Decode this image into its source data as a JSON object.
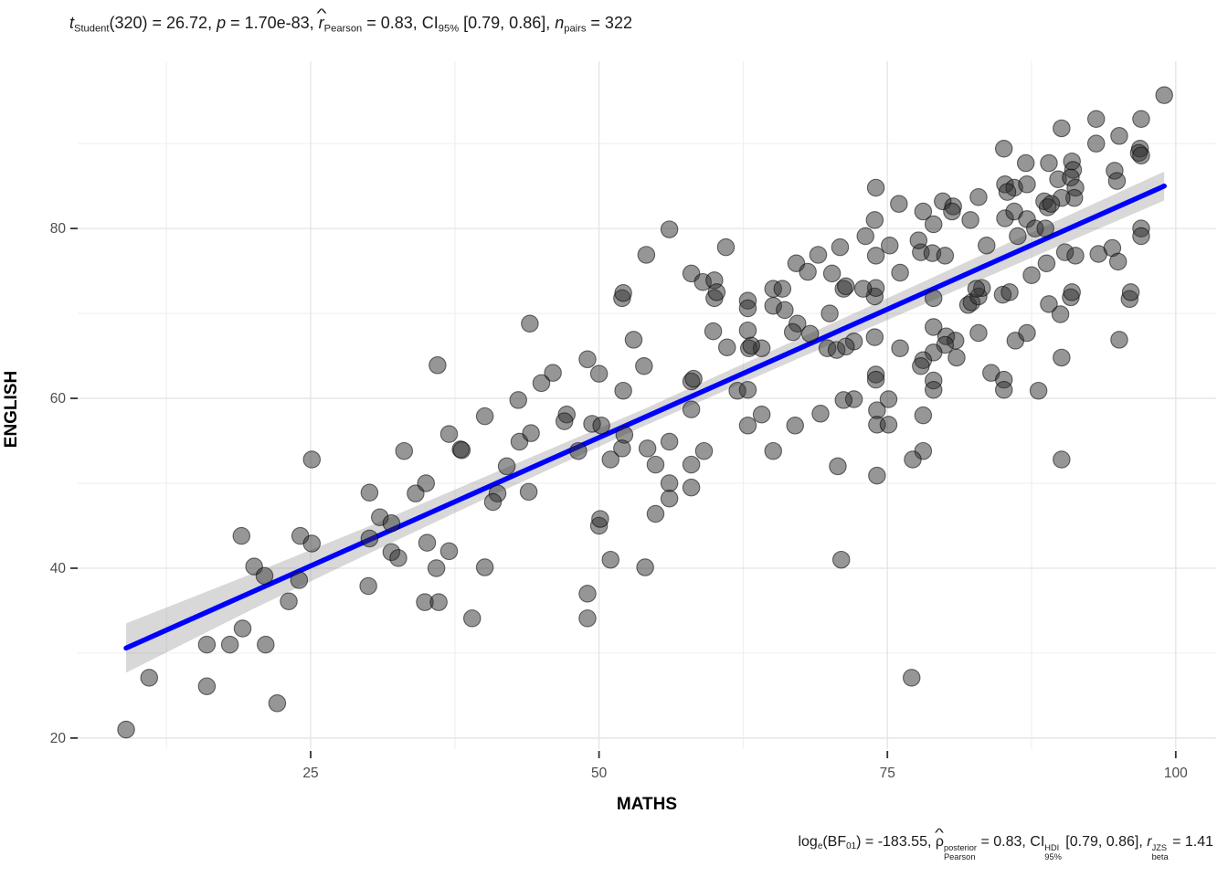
{
  "plot_colors": {
    "background": "#ffffff",
    "grid_major": "#e4e4e4",
    "grid_minor": "#f0f0f0",
    "tick_mark": "#333333",
    "tick_label": "#4d4d4d",
    "axis_title": "#000000",
    "point_fill": "rgba(45,45,45,0.50)",
    "point_stroke": "rgba(0,0,0,0.55)",
    "regression_line": "#0000FF",
    "ci_band": "rgba(127,127,127,0.30)",
    "stats_text": "#1a1a1a"
  },
  "subtitle": {
    "segments": [
      {
        "t": "t",
        "s": "i"
      },
      {
        "t": "Student",
        "s": "sub"
      },
      {
        "t": "(320) = 26.72, ",
        "s": ""
      },
      {
        "t": "p",
        "s": "i"
      },
      {
        "t": " = 1.70e-83, ",
        "s": ""
      },
      {
        "t": "r",
        "s": "i",
        "hat": "^"
      },
      {
        "t": "Pearson",
        "s": "sub"
      },
      {
        "t": " = 0.83, CI",
        "s": ""
      },
      {
        "t": "95%",
        "s": "sub"
      },
      {
        "t": " [0.79, 0.86], ",
        "s": ""
      },
      {
        "t": "n",
        "s": "i"
      },
      {
        "t": "pairs",
        "s": "sub"
      },
      {
        "t": " = 322",
        "s": ""
      }
    ]
  },
  "caption": {
    "segments": [
      {
        "t": "log",
        "s": ""
      },
      {
        "t": "e",
        "s": "sub"
      },
      {
        "t": "(BF",
        "s": ""
      },
      {
        "t": "01",
        "s": "sub"
      },
      {
        "t": ") = -183.55, ",
        "s": ""
      },
      {
        "t": "ρ",
        "s": "",
        "hat": "^"
      },
      {
        "top": "posterior",
        "bot": "Pearson",
        "s": "stack"
      },
      {
        "t": " = 0.83, CI",
        "s": ""
      },
      {
        "top": "HDI",
        "bot": "95%",
        "s": "stack"
      },
      {
        "t": " [0.79, 0.86], ",
        "s": ""
      },
      {
        "t": "r",
        "s": "i"
      },
      {
        "top": "JZS",
        "bot": "beta",
        "s": "stack"
      },
      {
        "t": " = 1.41",
        "s": ""
      }
    ]
  },
  "chart_data": {
    "type": "scatter",
    "xlabel": "MATHS",
    "ylabel": "ENGLISH",
    "xlim": [
      4.8,
      103.5
    ],
    "ylim": [
      18.7,
      99.7
    ],
    "x_ticks": [
      25,
      50,
      75,
      100
    ],
    "x_minor_ticks": [
      12.5,
      37.5,
      62.5,
      87.5
    ],
    "y_ticks": [
      20,
      40,
      60,
      80
    ],
    "y_minor_ticks": [
      30,
      50,
      70,
      90
    ],
    "grid": true,
    "legend": "none",
    "n_pairs": 322,
    "regression_line": {
      "x1": 9,
      "y1": 30.6,
      "x2": 99,
      "y2": 85.0
    },
    "ci_band": {
      "x": [
        9,
        20,
        30,
        40,
        54,
        70,
        85,
        99
      ],
      "upper": [
        33.5,
        39.4,
        44.9,
        50.7,
        58.8,
        68.7,
        78.0,
        86.7
      ],
      "lower": [
        27.7,
        35.2,
        41.7,
        48.1,
        56.8,
        66.3,
        75.1,
        83.3
      ]
    },
    "points": [
      [
        9,
        21
      ],
      [
        11,
        27.1
      ],
      [
        16,
        26.1
      ],
      [
        22.1,
        24.1
      ],
      [
        16,
        31
      ],
      [
        18,
        31
      ],
      [
        21.1,
        31
      ],
      [
        19.1,
        32.9
      ],
      [
        23.1,
        36.1
      ],
      [
        30,
        37.9
      ],
      [
        34.9,
        36
      ],
      [
        36.1,
        36
      ],
      [
        20.1,
        40.2
      ],
      [
        21,
        39.1
      ],
      [
        24,
        38.6
      ],
      [
        19,
        43.8
      ],
      [
        24.1,
        43.8
      ],
      [
        25.1,
        42.9
      ],
      [
        30.1,
        43.5
      ],
      [
        32,
        41.9
      ],
      [
        32.6,
        41.2
      ],
      [
        35.1,
        43
      ],
      [
        37,
        42
      ],
      [
        35.9,
        40
      ],
      [
        39,
        34.1
      ],
      [
        49,
        34.1
      ],
      [
        49,
        37
      ],
      [
        40.1,
        40.1
      ],
      [
        51,
        41
      ],
      [
        54,
        40.1
      ],
      [
        50,
        45
      ],
      [
        71,
        41
      ],
      [
        77.1,
        27.1
      ],
      [
        36,
        63.9
      ],
      [
        25.1,
        52.8
      ],
      [
        33.1,
        53.8
      ],
      [
        37,
        55.8
      ],
      [
        38,
        54
      ],
      [
        30.1,
        48.9
      ],
      [
        34.1,
        48.8
      ],
      [
        35,
        50
      ],
      [
        31,
        46
      ],
      [
        32,
        45.3
      ],
      [
        52,
        71.8
      ],
      [
        60,
        71.8
      ],
      [
        62.9,
        71.5
      ],
      [
        62.9,
        70.6
      ],
      [
        65.1,
        70.9
      ],
      [
        66.1,
        70.4
      ],
      [
        67.2,
        68.8
      ],
      [
        70,
        70
      ],
      [
        44,
        68.8
      ],
      [
        53,
        66.9
      ],
      [
        59.9,
        67.9
      ],
      [
        61.1,
        66
      ],
      [
        62.9,
        68
      ],
      [
        63,
        65.9
      ],
      [
        64.1,
        65.9
      ],
      [
        63.2,
        66.2
      ],
      [
        66.8,
        67.8
      ],
      [
        68.3,
        67.6
      ],
      [
        69.8,
        65.9
      ],
      [
        70.6,
        65.7
      ],
      [
        49,
        64.6
      ],
      [
        53.9,
        63.8
      ],
      [
        50,
        62.9
      ],
      [
        46,
        63
      ],
      [
        45,
        61.8
      ],
      [
        58,
        62
      ],
      [
        58.2,
        62.3
      ],
      [
        58,
        58.7
      ],
      [
        62,
        60.9
      ],
      [
        62.9,
        61
      ],
      [
        52.1,
        60.9
      ],
      [
        43,
        59.8
      ],
      [
        40.1,
        57.9
      ],
      [
        47.2,
        58.1
      ],
      [
        47,
        57.3
      ],
      [
        49.4,
        57
      ],
      [
        50.2,
        56.8
      ],
      [
        43.1,
        54.9
      ],
      [
        44.1,
        55.9
      ],
      [
        38.1,
        53.9
      ],
      [
        48.2,
        53.8
      ],
      [
        52.2,
        55.7
      ],
      [
        52,
        54.1
      ],
      [
        51,
        52.8
      ],
      [
        54.2,
        54.1
      ],
      [
        56.1,
        54.9
      ],
      [
        59.1,
        53.8
      ],
      [
        65.1,
        53.8
      ],
      [
        62.9,
        56.8
      ],
      [
        64.1,
        58.1
      ],
      [
        67,
        56.8
      ],
      [
        69.2,
        58.2
      ],
      [
        70.7,
        52
      ],
      [
        42,
        52
      ],
      [
        54.9,
        52.2
      ],
      [
        58,
        52.2
      ],
      [
        56.1,
        50
      ],
      [
        58,
        49.5
      ],
      [
        56.1,
        48.2
      ],
      [
        54.9,
        46.4
      ],
      [
        41.2,
        48.8
      ],
      [
        40.8,
        47.8
      ],
      [
        43.9,
        49
      ],
      [
        50.1,
        45.8
      ],
      [
        73.9,
        72
      ],
      [
        79,
        71.8
      ],
      [
        82,
        71
      ],
      [
        82.3,
        71.3
      ],
      [
        82.9,
        72
      ],
      [
        85,
        72.2
      ],
      [
        89,
        71.1
      ],
      [
        90.9,
        71.9
      ],
      [
        96,
        71.7
      ],
      [
        90,
        69.9
      ],
      [
        79,
        68.4
      ],
      [
        80.1,
        67.3
      ],
      [
        80.9,
        66.8
      ],
      [
        80,
        66.3
      ],
      [
        81,
        64.8
      ],
      [
        79,
        65.4
      ],
      [
        78.1,
        64.5
      ],
      [
        77.9,
        63.8
      ],
      [
        76.1,
        65.9
      ],
      [
        82.9,
        67.7
      ],
      [
        86.1,
        66.8
      ],
      [
        87.1,
        67.7
      ],
      [
        95.1,
        66.9
      ],
      [
        90.1,
        64.8
      ],
      [
        73.9,
        67.2
      ],
      [
        72.1,
        66.7
      ],
      [
        71.4,
        66.1
      ],
      [
        74,
        62.8
      ],
      [
        74,
        62.2
      ],
      [
        79,
        62.1
      ],
      [
        79,
        61
      ],
      [
        84,
        63
      ],
      [
        85.1,
        62.2
      ],
      [
        85.1,
        61
      ],
      [
        88.1,
        60.9
      ],
      [
        72.1,
        59.9
      ],
      [
        71.2,
        59.8
      ],
      [
        74.1,
        58.6
      ],
      [
        75.1,
        59.9
      ],
      [
        74.1,
        56.9
      ],
      [
        75.1,
        56.9
      ],
      [
        78.1,
        58
      ],
      [
        78.1,
        53.8
      ],
      [
        77.2,
        52.8
      ],
      [
        74.1,
        50.9
      ],
      [
        90.1,
        52.8
      ],
      [
        56.1,
        79.9
      ],
      [
        54.1,
        76.9
      ],
      [
        61,
        77.8
      ],
      [
        58,
        74.7
      ],
      [
        59,
        73.7
      ],
      [
        60,
        73.9
      ],
      [
        52.1,
        72.4
      ],
      [
        60.2,
        72.5
      ],
      [
        65.1,
        72.9
      ],
      [
        65.9,
        72.9
      ],
      [
        67.1,
        75.9
      ],
      [
        68.1,
        74.9
      ],
      [
        69,
        76.9
      ],
      [
        70.2,
        74.7
      ],
      [
        70.9,
        77.8
      ],
      [
        71.2,
        72.9
      ],
      [
        99,
        95.7
      ],
      [
        93.1,
        92.9
      ],
      [
        97,
        92.9
      ],
      [
        90.1,
        91.8
      ],
      [
        95.1,
        90.9
      ],
      [
        93.1,
        90
      ],
      [
        96.9,
        89.4
      ],
      [
        96.8,
        88.9
      ],
      [
        97,
        88.6
      ],
      [
        85.1,
        89.4
      ],
      [
        87,
        87.7
      ],
      [
        89,
        87.7
      ],
      [
        91,
        87.9
      ],
      [
        91.1,
        86.9
      ],
      [
        89.8,
        85.8
      ],
      [
        90.9,
        86
      ],
      [
        91.3,
        84.8
      ],
      [
        91.2,
        83.6
      ],
      [
        90.1,
        83.6
      ],
      [
        94.7,
        86.8
      ],
      [
        94.9,
        85.6
      ],
      [
        74,
        84.8
      ],
      [
        76,
        82.9
      ],
      [
        73.9,
        81
      ],
      [
        73.1,
        79.1
      ],
      [
        74,
        76.8
      ],
      [
        75.2,
        78
      ],
      [
        76.1,
        74.8
      ],
      [
        78.1,
        82
      ],
      [
        79,
        80.5
      ],
      [
        79.8,
        83.2
      ],
      [
        80.7,
        82.6
      ],
      [
        80.6,
        82
      ],
      [
        77.9,
        77.2
      ],
      [
        78.9,
        77.1
      ],
      [
        80,
        76.8
      ],
      [
        77.7,
        78.6
      ],
      [
        82.2,
        81
      ],
      [
        82.9,
        83.7
      ],
      [
        85.2,
        85.2
      ],
      [
        86,
        84.8
      ],
      [
        85.4,
        84.3
      ],
      [
        87.1,
        85.2
      ],
      [
        85.2,
        81.2
      ],
      [
        86,
        82
      ],
      [
        87.1,
        81.1
      ],
      [
        88.6,
        83.2
      ],
      [
        88.9,
        82.5
      ],
      [
        89.2,
        82.9
      ],
      [
        87.8,
        80
      ],
      [
        88.7,
        80
      ],
      [
        87.5,
        74.5
      ],
      [
        88.8,
        75.9
      ],
      [
        86.3,
        79.1
      ],
      [
        83.6,
        78
      ],
      [
        83.2,
        73
      ],
      [
        82.7,
        72.9
      ],
      [
        85.6,
        72.5
      ],
      [
        90.4,
        77.2
      ],
      [
        91.3,
        76.8
      ],
      [
        93.3,
        77
      ],
      [
        94.5,
        77.7
      ],
      [
        95,
        76.1
      ],
      [
        97,
        80
      ],
      [
        97,
        79.1
      ],
      [
        74,
        73
      ],
      [
        72.9,
        72.9
      ],
      [
        71.4,
        73.2
      ],
      [
        96.1,
        72.5
      ],
      [
        91,
        72.5
      ]
    ]
  }
}
